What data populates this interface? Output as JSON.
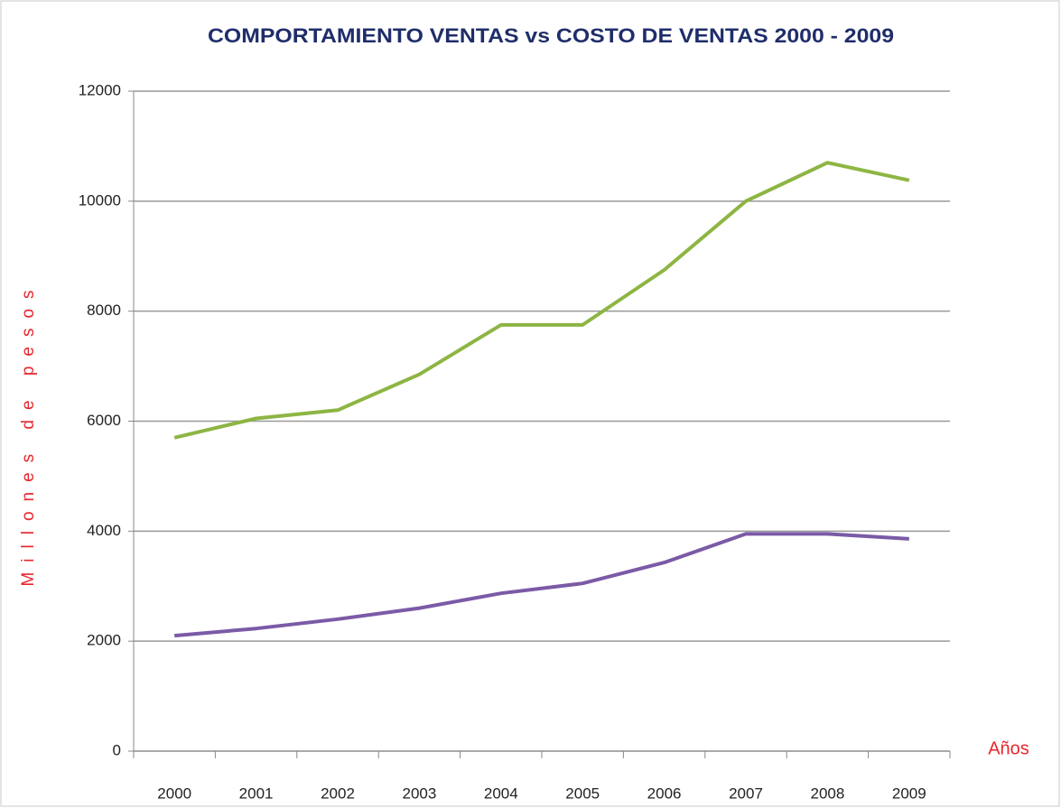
{
  "chart_data": {
    "type": "line",
    "title": "COMPORTAMIENTO VENTAS vs COSTO DE VENTAS 2000 - 2009",
    "y_label": "Millones de pesos",
    "x_label": "Años",
    "categories": [
      "2000",
      "2001",
      "2002",
      "2003",
      "2004",
      "2005",
      "2006",
      "2007",
      "2008",
      "2009"
    ],
    "series": [
      {
        "color": "#8db543",
        "values": [
          5700,
          6050,
          6200,
          6850,
          7750,
          7750,
          8750,
          10000,
          10700,
          10380
        ]
      },
      {
        "color": "#7b5aa6",
        "values": [
          2100,
          2230,
          2400,
          2600,
          2870,
          3050,
          3430,
          3950,
          3950,
          3860
        ]
      }
    ],
    "ylim": [
      0,
      12000
    ],
    "yticks": [
      0,
      2000,
      4000,
      6000,
      8000,
      10000,
      12000
    ],
    "grid": true
  }
}
